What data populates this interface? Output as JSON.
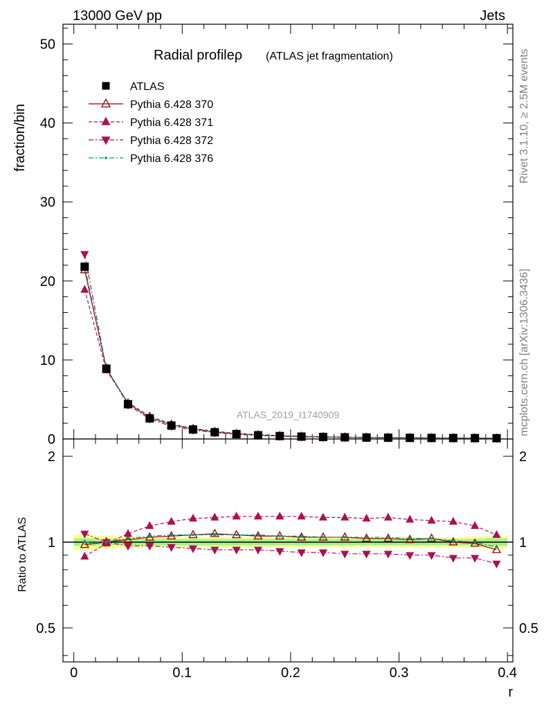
{
  "header": {
    "left": "13000 GeV pp",
    "right": "Jets"
  },
  "side_labels": {
    "rivet": "Rivet 3.1.10, ≥ 2.5M events",
    "mcplots": "mcplots.cern.ch [arXiv:1306.3436]"
  },
  "chart_data": {
    "type": "scatter",
    "title": "Radial profileρ",
    "subtitle": "(ATLAS jet fragmentation)",
    "watermark": "ATLAS_2019_I1740909",
    "xlabel": "r",
    "ylabel": "fraction/bin",
    "ratio_ylabel": "Ratio to ATLAS",
    "xlim": [
      -0.01,
      0.405
    ],
    "ylim": [
      0,
      52.5
    ],
    "ratio_ylim": [
      0.38,
      2.3
    ],
    "x_ticks": [
      0,
      0.1,
      0.2,
      0.3,
      0.4
    ],
    "x_tick_labels": [
      "0",
      "0.1",
      "0.2",
      "0.3",
      "0.4"
    ],
    "y_ticks": [
      0,
      10,
      20,
      30,
      40,
      50
    ],
    "y_tick_labels": [
      "0",
      "10",
      "20",
      "30",
      "40",
      "50"
    ],
    "ratio_ticks": [
      0.5,
      1,
      2
    ],
    "ratio_tick_labels": [
      "0.5",
      "1",
      "2"
    ],
    "legend_position": "top-left",
    "x": [
      0.01,
      0.03,
      0.05,
      0.07,
      0.09,
      0.11,
      0.13,
      0.15,
      0.17,
      0.19,
      0.21,
      0.23,
      0.25,
      0.27,
      0.29,
      0.31,
      0.33,
      0.35,
      0.37,
      0.39
    ],
    "series": [
      {
        "name": "ATLAS",
        "marker": "square",
        "color": "#000000",
        "values": [
          21.8,
          8.9,
          4.4,
          2.6,
          1.7,
          1.2,
          0.85,
          0.62,
          0.47,
          0.37,
          0.3,
          0.25,
          0.21,
          0.18,
          0.16,
          0.14,
          0.13,
          0.12,
          0.11,
          0.1
        ],
        "ratio": [
          1,
          1,
          1,
          1,
          1,
          1,
          1,
          1,
          1,
          1,
          1,
          1,
          1,
          1,
          1,
          1,
          1,
          1,
          1,
          1
        ]
      },
      {
        "name": "Pythia 6.428 370",
        "marker": "triangle-up-open",
        "line": "solid",
        "color": "#8b0000",
        "values": [
          21.4,
          8.95,
          4.5,
          2.7,
          1.8,
          1.26,
          0.9,
          0.65,
          0.49,
          0.39,
          0.31,
          0.26,
          0.22,
          0.19,
          0.17,
          0.15,
          0.13,
          0.12,
          0.11,
          0.09
        ],
        "ratio": [
          0.98,
          1.0,
          1.02,
          1.04,
          1.05,
          1.06,
          1.07,
          1.06,
          1.05,
          1.05,
          1.04,
          1.04,
          1.04,
          1.03,
          1.03,
          1.02,
          1.03,
          1.0,
          0.99,
          0.94
        ]
      },
      {
        "name": "Pythia 6.428 371",
        "marker": "triangle-up",
        "line": "dashed",
        "color": "#aa1155",
        "values": [
          18.9,
          8.7,
          4.6,
          2.9,
          1.9,
          1.35,
          0.98,
          0.72,
          0.55,
          0.44,
          0.35,
          0.29,
          0.25,
          0.21,
          0.19,
          0.17,
          0.15,
          0.14,
          0.12,
          0.11
        ],
        "ratio": [
          0.89,
          0.99,
          1.07,
          1.14,
          1.18,
          1.21,
          1.22,
          1.23,
          1.23,
          1.23,
          1.23,
          1.22,
          1.22,
          1.21,
          1.22,
          1.2,
          1.19,
          1.18,
          1.14,
          1.06
        ]
      },
      {
        "name": "Pythia 6.428 372",
        "marker": "triangle-down",
        "line": "dashdot",
        "color": "#aa1155",
        "values": [
          23.4,
          8.9,
          4.3,
          2.55,
          1.6,
          1.13,
          0.8,
          0.58,
          0.44,
          0.34,
          0.27,
          0.23,
          0.19,
          0.16,
          0.15,
          0.13,
          0.12,
          0.11,
          0.1,
          0.085
        ],
        "ratio": [
          1.07,
          1.0,
          0.97,
          0.97,
          0.96,
          0.95,
          0.94,
          0.94,
          0.94,
          0.93,
          0.92,
          0.92,
          0.91,
          0.91,
          0.91,
          0.9,
          0.9,
          0.88,
          0.88,
          0.84
        ]
      },
      {
        "name": "Pythia 6.428 376",
        "marker": "dot",
        "line": "dashdot",
        "color": "#009977",
        "values": [
          21.9,
          8.9,
          4.5,
          2.7,
          1.8,
          1.26,
          0.9,
          0.66,
          0.5,
          0.39,
          0.31,
          0.26,
          0.22,
          0.19,
          0.17,
          0.15,
          0.13,
          0.12,
          0.11,
          0.095
        ],
        "ratio": [
          1.0,
          1.0,
          1.03,
          1.05,
          1.06,
          1.06,
          1.06,
          1.06,
          1.06,
          1.05,
          1.05,
          1.04,
          1.04,
          1.04,
          1.04,
          1.03,
          1.03,
          1.01,
          1.0,
          0.96
        ]
      }
    ],
    "band_colors": {
      "inner": "#90ee90",
      "outer": "#ffff66"
    },
    "band_inner_halfwidth": [
      0.03,
      0.025,
      0.025,
      0.025,
      0.025,
      0.025,
      0.025,
      0.025,
      0.025,
      0.025,
      0.025,
      0.025,
      0.025,
      0.025,
      0.025,
      0.025,
      0.025,
      0.025,
      0.025,
      0.03
    ],
    "band_outer_halfwidth": [
      0.06,
      0.05,
      0.045,
      0.04,
      0.04,
      0.04,
      0.04,
      0.04,
      0.04,
      0.04,
      0.04,
      0.04,
      0.04,
      0.04,
      0.04,
      0.04,
      0.04,
      0.04,
      0.045,
      0.05
    ]
  }
}
